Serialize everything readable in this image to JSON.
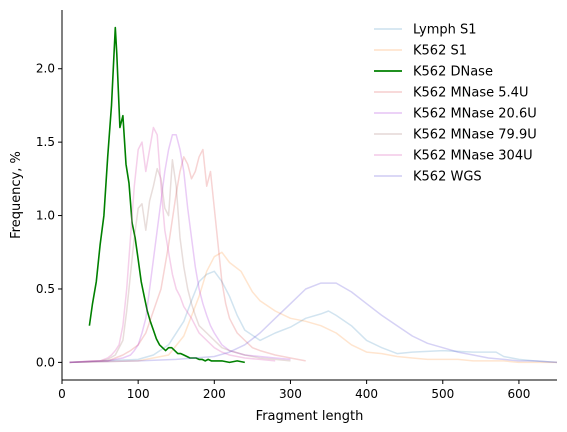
{
  "chart_data": {
    "type": "line",
    "xlabel": "Fragment length",
    "ylabel": "Frequency, %",
    "xlim": [
      0,
      650
    ],
    "ylim": [
      -0.12,
      2.4
    ],
    "xticks": [
      0,
      100,
      200,
      300,
      400,
      500,
      600
    ],
    "yticks": [
      0.0,
      0.5,
      1.0,
      1.5,
      2.0
    ],
    "xtick_labels": [
      "0",
      "100",
      "200",
      "300",
      "400",
      "500",
      "600"
    ],
    "ytick_labels": [
      "0.0",
      "0.5",
      "1.0",
      "1.5",
      "2.0"
    ],
    "legend_position": "top-right",
    "grid": false,
    "series": [
      {
        "name": "Lymph S1",
        "color": "#1f77b4",
        "opacity": 0.2,
        "x": [
          10,
          50,
          100,
          120,
          140,
          160,
          170,
          180,
          190,
          200,
          210,
          220,
          230,
          240,
          260,
          280,
          300,
          320,
          340,
          350,
          360,
          380,
          400,
          420,
          440,
          460,
          500,
          540,
          570,
          580,
          600,
          620,
          650
        ],
        "y": [
          0.0,
          0.01,
          0.02,
          0.05,
          0.12,
          0.28,
          0.42,
          0.55,
          0.6,
          0.62,
          0.55,
          0.45,
          0.32,
          0.22,
          0.15,
          0.2,
          0.24,
          0.3,
          0.33,
          0.35,
          0.32,
          0.25,
          0.15,
          0.1,
          0.06,
          0.07,
          0.08,
          0.07,
          0.07,
          0.04,
          0.02,
          0.01,
          0.0
        ]
      },
      {
        "name": "K562 S1",
        "color": "#ff7f0e",
        "opacity": 0.2,
        "x": [
          10,
          100,
          140,
          160,
          180,
          190,
          200,
          210,
          220,
          235,
          250,
          260,
          280,
          300,
          320,
          340,
          360,
          380,
          400,
          420,
          440,
          460,
          480,
          500,
          520,
          540,
          560,
          580,
          600,
          620,
          650
        ],
        "y": [
          0.0,
          0.01,
          0.05,
          0.18,
          0.45,
          0.62,
          0.72,
          0.75,
          0.68,
          0.62,
          0.48,
          0.42,
          0.35,
          0.3,
          0.28,
          0.25,
          0.2,
          0.12,
          0.07,
          0.06,
          0.04,
          0.03,
          0.02,
          0.02,
          0.02,
          0.01,
          0.01,
          0.01,
          0.0,
          0.0,
          0.0
        ]
      },
      {
        "name": "K562 DNase",
        "color": "#008000",
        "opacity": 1.0,
        "x": [
          36,
          40,
          45,
          50,
          55,
          60,
          65,
          70,
          72,
          76,
          80,
          84,
          88,
          92,
          96,
          100,
          104,
          108,
          112,
          116,
          120,
          124,
          128,
          132,
          136,
          140,
          144,
          148,
          152,
          156,
          160,
          164,
          168,
          172,
          176,
          180,
          184,
          188,
          192,
          196,
          200,
          210,
          220,
          230,
          240
        ],
        "y": [
          0.25,
          0.4,
          0.55,
          0.8,
          1.0,
          1.4,
          1.75,
          2.28,
          2.1,
          1.6,
          1.68,
          1.35,
          1.22,
          0.95,
          0.85,
          0.7,
          0.55,
          0.45,
          0.35,
          0.28,
          0.22,
          0.16,
          0.12,
          0.1,
          0.08,
          0.1,
          0.1,
          0.08,
          0.06,
          0.06,
          0.05,
          0.04,
          0.03,
          0.03,
          0.03,
          0.02,
          0.02,
          0.01,
          0.02,
          0.01,
          0.01,
          0.01,
          0.0,
          0.01,
          0.0
        ]
      },
      {
        "name": "K562 MNase 5.4U",
        "color": "#d62728",
        "opacity": 0.2,
        "x": [
          10,
          60,
          70,
          80,
          90,
          100,
          110,
          120,
          130,
          140,
          150,
          155,
          160,
          165,
          170,
          175,
          180,
          185,
          190,
          195,
          200,
          205,
          210,
          215,
          220,
          225,
          230,
          240,
          250,
          260,
          280,
          300,
          320
        ],
        "y": [
          0.0,
          0.01,
          0.03,
          0.05,
          0.08,
          0.12,
          0.2,
          0.35,
          0.5,
          0.8,
          1.15,
          1.3,
          1.4,
          1.35,
          1.25,
          1.3,
          1.4,
          1.45,
          1.2,
          1.3,
          1.05,
          0.8,
          0.55,
          0.4,
          0.3,
          0.25,
          0.2,
          0.15,
          0.1,
          0.08,
          0.05,
          0.03,
          0.01
        ]
      },
      {
        "name": "K562 MNase 20.6U",
        "color": "#9400d3",
        "opacity": 0.2,
        "x": [
          10,
          50,
          60,
          70,
          80,
          90,
          95,
          100,
          105,
          110,
          115,
          120,
          125,
          130,
          135,
          140,
          145,
          150,
          155,
          160,
          165,
          170,
          175,
          180,
          185,
          190,
          195,
          200,
          210,
          220,
          240,
          260,
          280,
          300
        ],
        "y": [
          0.0,
          0.01,
          0.01,
          0.02,
          0.03,
          0.05,
          0.08,
          0.12,
          0.2,
          0.3,
          0.5,
          0.7,
          0.9,
          1.1,
          1.3,
          1.45,
          1.55,
          1.55,
          1.45,
          1.3,
          1.05,
          0.85,
          0.65,
          0.5,
          0.4,
          0.32,
          0.25,
          0.2,
          0.12,
          0.08,
          0.05,
          0.04,
          0.03,
          0.02
        ]
      },
      {
        "name": "K562 MNase 79.9U",
        "color": "#8c564b",
        "opacity": 0.2,
        "x": [
          10,
          50,
          60,
          70,
          80,
          85,
          90,
          95,
          100,
          105,
          110,
          115,
          120,
          125,
          130,
          135,
          140,
          145,
          150,
          155,
          160,
          165,
          170,
          175,
          180,
          190,
          200,
          210,
          220,
          240,
          260,
          280,
          300
        ],
        "y": [
          0.0,
          0.01,
          0.02,
          0.05,
          0.15,
          0.35,
          0.6,
          0.85,
          1.05,
          1.08,
          0.9,
          1.1,
          1.2,
          1.32,
          1.25,
          1.05,
          1.0,
          1.38,
          1.2,
          0.85,
          0.65,
          0.5,
          0.4,
          0.32,
          0.25,
          0.2,
          0.15,
          0.1,
          0.08,
          0.05,
          0.03,
          0.02,
          0.01
        ]
      },
      {
        "name": "K562 MNase 304U",
        "color": "#e377c2",
        "opacity": 0.35,
        "x": [
          10,
          40,
          50,
          60,
          65,
          70,
          75,
          80,
          85,
          90,
          95,
          100,
          105,
          110,
          115,
          120,
          125,
          130,
          135,
          140,
          145,
          150,
          155,
          160,
          170,
          180,
          190,
          200,
          210,
          220,
          240,
          260,
          280
        ],
        "y": [
          0.0,
          0.01,
          0.01,
          0.03,
          0.05,
          0.08,
          0.12,
          0.25,
          0.5,
          0.85,
          1.2,
          1.45,
          1.5,
          1.3,
          1.45,
          1.6,
          1.55,
          1.2,
          0.9,
          0.75,
          0.6,
          0.5,
          0.45,
          0.38,
          0.3,
          0.2,
          0.15,
          0.1,
          0.07,
          0.05,
          0.03,
          0.02,
          0.01
        ]
      },
      {
        "name": "K562 WGS",
        "color": "#5b4bd6",
        "opacity": 0.25,
        "x": [
          10,
          100,
          150,
          200,
          220,
          240,
          260,
          280,
          300,
          320,
          340,
          360,
          380,
          400,
          420,
          440,
          460,
          480,
          500,
          520,
          540,
          560,
          580,
          600,
          620,
          650
        ],
        "y": [
          0.0,
          0.01,
          0.02,
          0.04,
          0.07,
          0.12,
          0.2,
          0.3,
          0.4,
          0.5,
          0.54,
          0.54,
          0.48,
          0.4,
          0.32,
          0.25,
          0.18,
          0.13,
          0.1,
          0.07,
          0.05,
          0.03,
          0.02,
          0.01,
          0.01,
          0.0
        ]
      }
    ]
  }
}
